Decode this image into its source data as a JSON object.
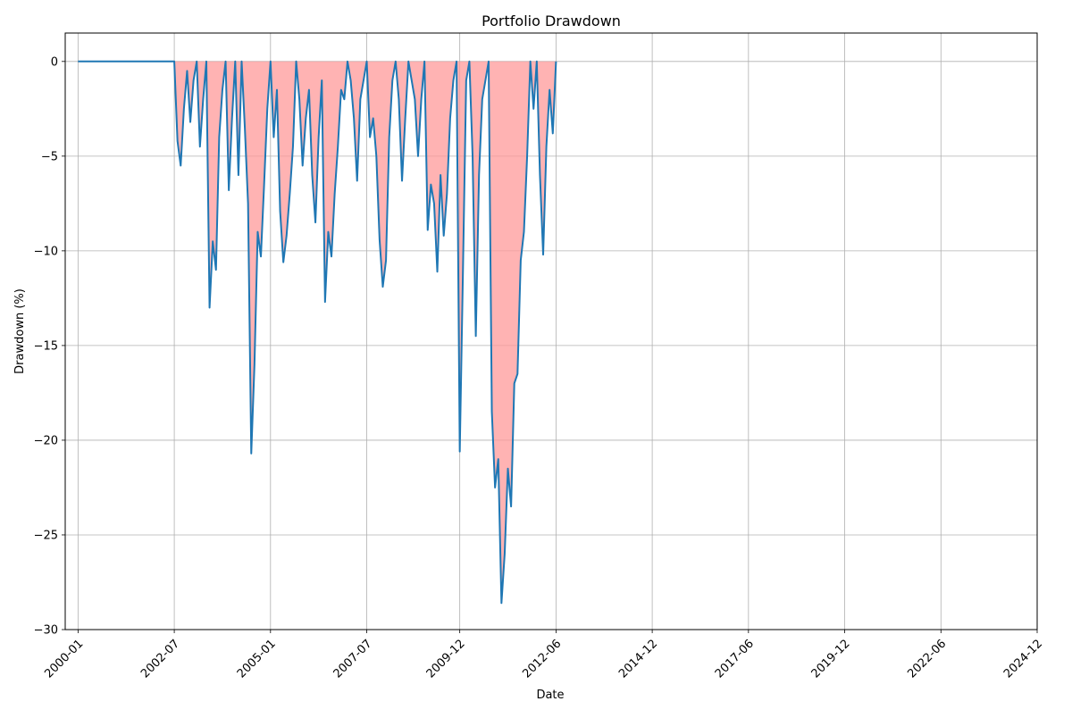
{
  "chart_data": {
    "type": "area",
    "title": "Portfolio Drawdown",
    "xlabel": "Date",
    "ylabel": "Drawdown (%)",
    "xlim": [
      "1999-09",
      "2024-12"
    ],
    "ylim": [
      -30,
      1.5
    ],
    "x_ticks": [
      "2000-01",
      "2002-07",
      "2005-01",
      "2007-07",
      "2009-12",
      "2012-06",
      "2014-12",
      "2017-06",
      "2019-12",
      "2022-06",
      "2024-12"
    ],
    "y_ticks": [
      0,
      -5,
      -10,
      -15,
      -20,
      -25,
      -30
    ],
    "grid": true,
    "line_color": "#1f77b4",
    "fill_color": "#ff9999",
    "series": [
      {
        "x": [
          "2000-01",
          "2002-07",
          "2002-08",
          "2002-09",
          "2002-10",
          "2002-11",
          "2002-12",
          "2003-01",
          "2003-02",
          "2003-03",
          "2003-04",
          "2003-05",
          "2003-06",
          "2003-07",
          "2003-08",
          "2003-09",
          "2003-10",
          "2003-11",
          "2003-12",
          "2004-01",
          "2004-02",
          "2004-03",
          "2004-04",
          "2004-05",
          "2004-06",
          "2004-07",
          "2004-08",
          "2004-09",
          "2004-10",
          "2004-11",
          "2004-12",
          "2005-01",
          "2005-02",
          "2005-03",
          "2005-04",
          "2005-05",
          "2005-06",
          "2005-07",
          "2005-08",
          "2005-09",
          "2005-10",
          "2005-11",
          "2005-12",
          "2006-01",
          "2006-02",
          "2006-03",
          "2006-04",
          "2006-05",
          "2006-06",
          "2006-07",
          "2006-08",
          "2006-09",
          "2006-10",
          "2006-11",
          "2006-12",
          "2007-01",
          "2007-02",
          "2007-03",
          "2007-04",
          "2007-05",
          "2007-06",
          "2007-07",
          "2007-08",
          "2007-09",
          "2007-10",
          "2007-11",
          "2007-12",
          "2008-01",
          "2008-02",
          "2008-03",
          "2008-04",
          "2008-05",
          "2008-06",
          "2008-07",
          "2008-08",
          "2008-09",
          "2008-10",
          "2008-11",
          "2008-12",
          "2009-01",
          "2009-02",
          "2009-03",
          "2009-04",
          "2009-05",
          "2009-06",
          "2009-07",
          "2009-08",
          "2009-09",
          "2009-10",
          "2009-11",
          "2009-12",
          "2010-01",
          "2010-02",
          "2010-03",
          "2010-04",
          "2010-05",
          "2010-06",
          "2010-07",
          "2010-08",
          "2010-09",
          "2010-10",
          "2010-11",
          "2010-12",
          "2011-01",
          "2011-02",
          "2011-03",
          "2011-04",
          "2011-05",
          "2011-06",
          "2011-07",
          "2011-08",
          "2011-09",
          "2011-10",
          "2011-11",
          "2011-12",
          "2012-01",
          "2012-02",
          "2012-03",
          "2012-04",
          "2012-05",
          "2012-06"
        ],
        "y": [
          0,
          0,
          -4.2,
          -5.5,
          -2.5,
          -0.5,
          -3.2,
          -1,
          0,
          -4.5,
          -2,
          0,
          -13,
          -9.5,
          -11,
          -4,
          -1.5,
          0,
          -6.8,
          -3,
          0,
          -6,
          0,
          -3.5,
          -7.5,
          -20.7,
          -16,
          -9,
          -10.3,
          -6.5,
          -2.5,
          0,
          -4,
          -1.5,
          -7.9,
          -10.6,
          -9.2,
          -7,
          -4.5,
          0,
          -2,
          -5.5,
          -3,
          -1.5,
          -6,
          -8.5,
          -4,
          -1,
          -12.7,
          -9,
          -10.3,
          -7,
          -4.5,
          -1.5,
          -2,
          0,
          -1,
          -3,
          -6.3,
          -2,
          -1,
          0,
          -4,
          -3,
          -5,
          -9.4,
          -11.9,
          -10.5,
          -4,
          -1,
          0,
          -2,
          -6.3,
          -3,
          0,
          -1,
          -2,
          -5,
          -2,
          0,
          -8.9,
          -6.5,
          -7.5,
          -11.1,
          -6,
          -9.2,
          -7,
          -3,
          -1,
          0,
          -20.6,
          -11,
          -1,
          0,
          -5,
          -14.5,
          -6,
          -2,
          -1,
          0,
          -18.5,
          -22.5,
          -21,
          -28.6,
          -26,
          -21.5,
          -23.5,
          -17,
          -16.5,
          -10.5,
          -9,
          -5,
          0,
          -2.5,
          0,
          -6,
          -10.2,
          -4.5,
          -1.5,
          -3.8,
          0
        ]
      }
    ]
  }
}
